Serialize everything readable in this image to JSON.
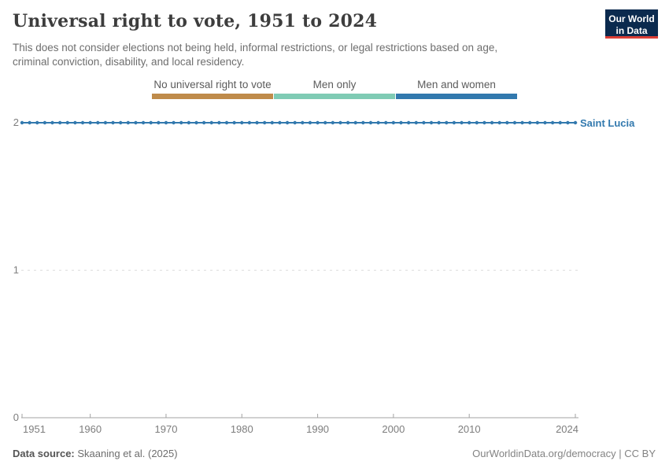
{
  "header": {
    "title": "Universal right to vote, 1951 to 2024",
    "subtitle_line1": "This does not consider elections not being held, informal restrictions, or legal restrictions based on age,",
    "subtitle_line2": "criminal conviction, disability, and local residency.",
    "logo": {
      "line1": "Our World",
      "line2": "in Data",
      "bg_color": "#0b2a4e",
      "accent_color": "#dc3e36"
    }
  },
  "legend": {
    "items": [
      {
        "label": "No universal right to vote",
        "color": "#bf8b4a",
        "value": 0
      },
      {
        "label": "Men only",
        "color": "#7fcbb4",
        "value": 1
      },
      {
        "label": "Men and women",
        "color": "#3279ae",
        "value": 2
      }
    ]
  },
  "chart_data": {
    "type": "line",
    "title": "Universal right to vote, 1951 to 2024",
    "xlabel": "",
    "ylabel": "",
    "xlim": [
      1951,
      2024
    ],
    "ylim": [
      0,
      2
    ],
    "x_ticks": [
      1951,
      1960,
      1970,
      1980,
      1990,
      2000,
      2010,
      2024
    ],
    "y_ticks": [
      0,
      1,
      2
    ],
    "grid": "horizontal dashed gridlines at y ticks 1 and 2; solid x axis at 0",
    "value_categories": {
      "0": "No universal right to vote",
      "1": "Men only",
      "2": "Men and women"
    },
    "series": [
      {
        "name": "Saint Lucia",
        "x_start": 1951,
        "x_end": 2024,
        "x_step": 1,
        "constant_value": 2,
        "meaning": "Men and women (universal suffrage) every year 1951-2024",
        "color": "#3279ae",
        "marker": "circle"
      }
    ],
    "legend_position": "top center as labeled color bars"
  },
  "entity_label": {
    "text": "Saint Lucia",
    "color": "#3279ae"
  },
  "footer": {
    "source_label": "Data source:",
    "source_value": "Skaaning et al. (2025)",
    "right_text": "OurWorldinData.org/democracy | CC BY"
  },
  "style": {
    "grid_color": "#dedede",
    "axis_color": "#a3a3a3",
    "tick_label_color": "#7d7d7d"
  }
}
